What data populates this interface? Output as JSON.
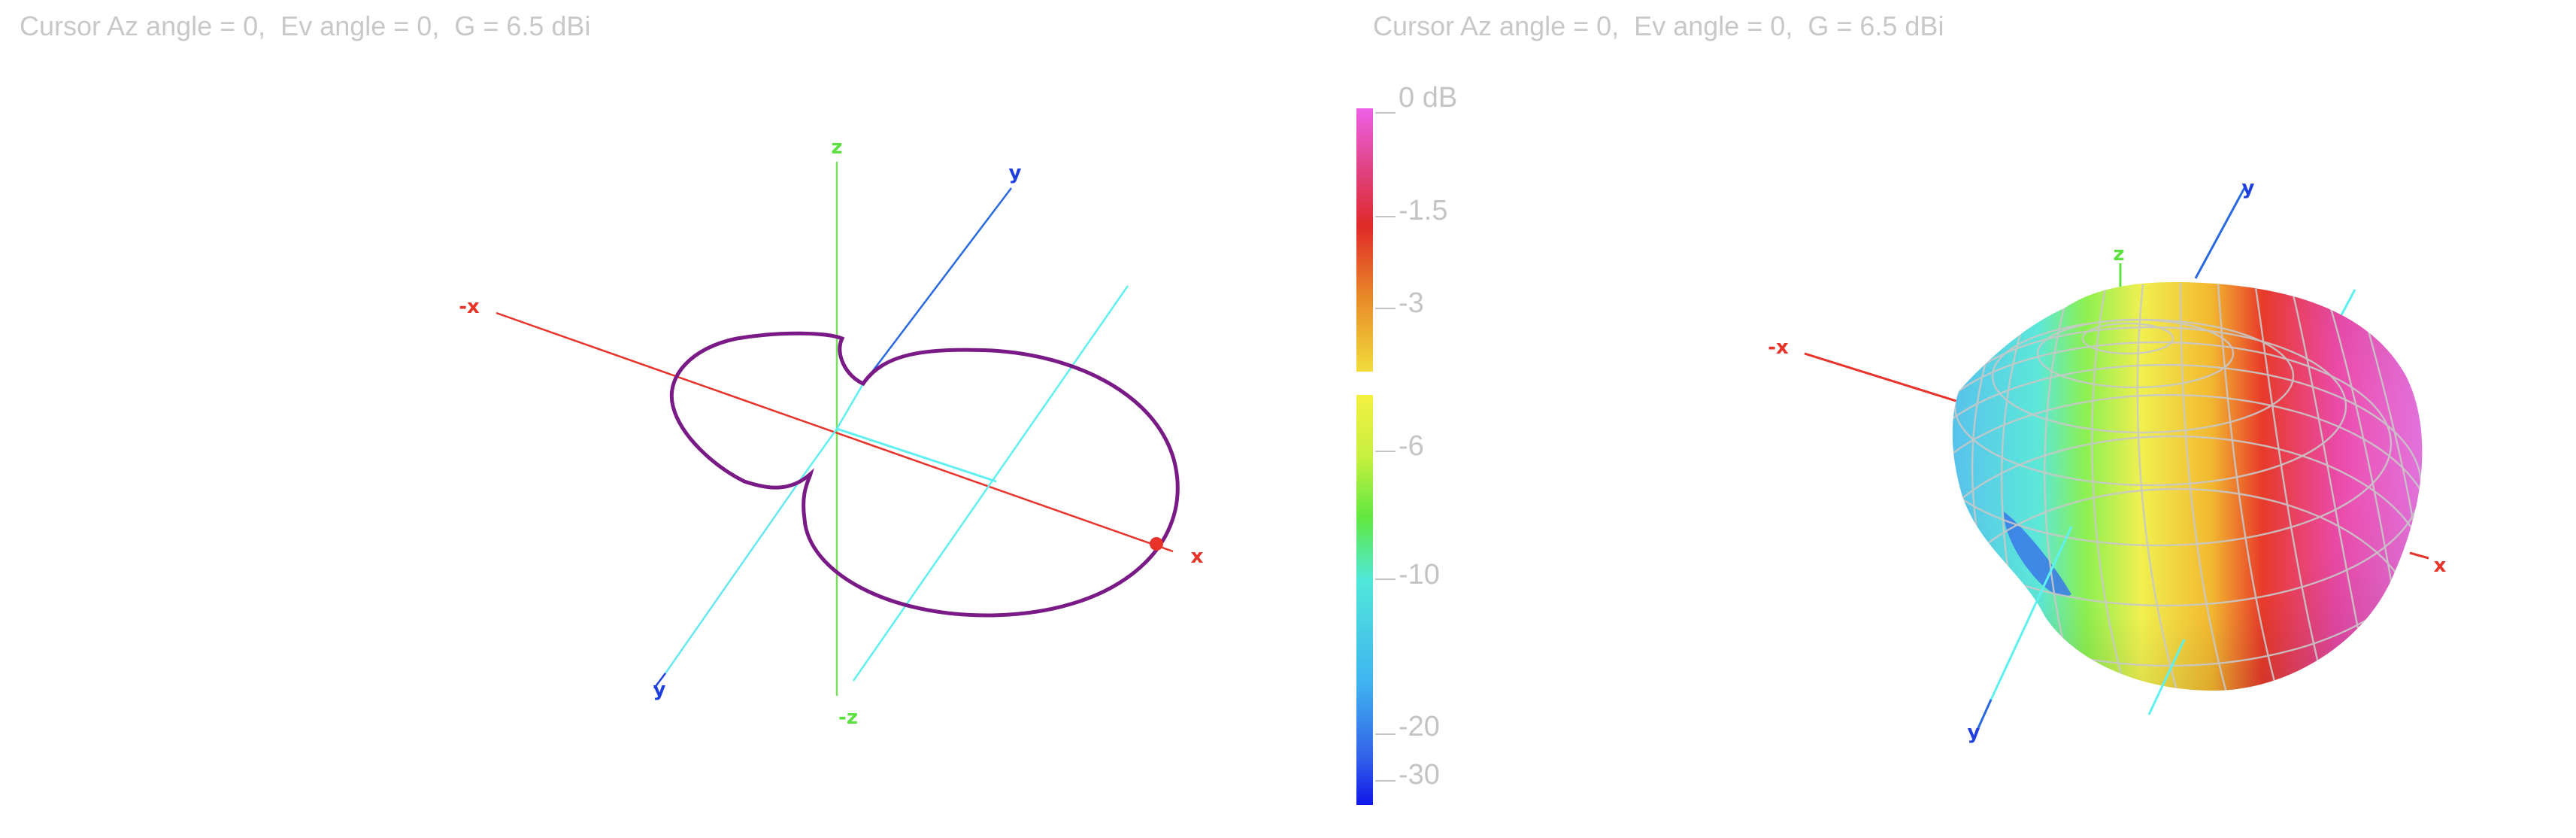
{
  "left_panel": {
    "cursor_readout": "Cursor Az angle = 0,  Ev angle = 0,  G = 6.5 dBi",
    "axes": {
      "x": "x",
      "neg_x": "-x",
      "y": "y",
      "neg_y": "y",
      "z": "z",
      "neg_z": "-z"
    }
  },
  "right_panel": {
    "cursor_readout": "Cursor Az angle = 0,  Ev angle = 0,  G = 6.5 dBi",
    "axes": {
      "x": "x",
      "neg_x": "-x",
      "y": "y",
      "neg_y": "y",
      "z": "z"
    }
  },
  "colorbar": {
    "ticks": [
      "0 dB",
      "-1.5",
      "-3",
      "-6",
      "-10",
      "-20",
      "-30"
    ]
  },
  "colors": {
    "x_axis": "#e8332a",
    "y_axis": "#1f5fe0",
    "z_axis": "#5ce040",
    "y_cut": "#5ff0f0",
    "pattern_cut": "#7a1a86",
    "cursor": "#e8332a"
  }
}
